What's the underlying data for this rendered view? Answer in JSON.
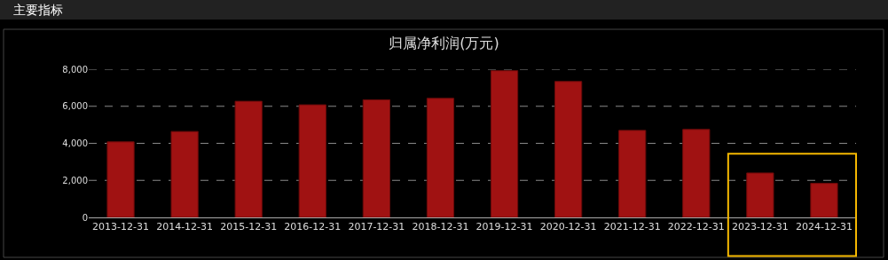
{
  "chart_data": {
    "type": "bar",
    "title": "归属净利润(万元)",
    "annotations": [
      "主要指标"
    ],
    "categories": [
      "2013-12-31",
      "2014-12-31",
      "2015-12-31",
      "2016-12-31",
      "2017-12-31",
      "2018-12-31",
      "2019-12-31",
      "2020-12-31",
      "2021-12-31",
      "2022-12-31",
      "2023-12-31",
      "2024-12-31"
    ],
    "values": [
      4080,
      4640,
      6270,
      6080,
      6350,
      6430,
      7920,
      7340,
      4700,
      4750,
      2400,
      1840
    ],
    "color": "#a01212",
    "ylim": [
      0,
      8000
    ],
    "yticks": [
      0,
      {
        "value": 2000,
        "label": "2,000"
      },
      {
        "value": 4000,
        "label": "4,000"
      },
      {
        "value": 6000,
        "label": "6,000"
      },
      {
        "value": 8000,
        "label": "8,000"
      }
    ],
    "grid": "y"
  }
}
